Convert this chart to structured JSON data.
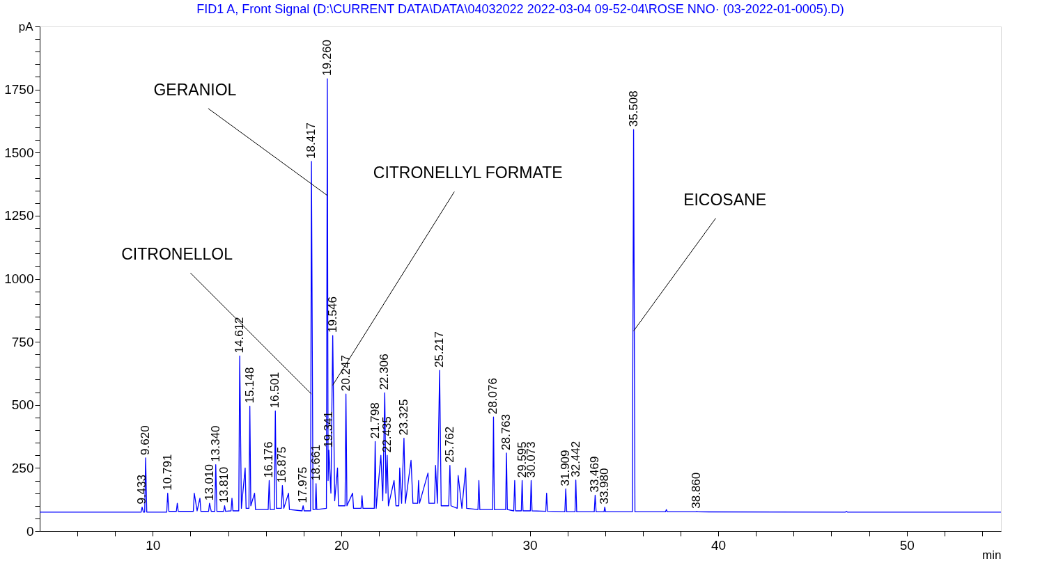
{
  "chart_data": {
    "type": "line",
    "title": "FID1 A, Front Signal (D:\\CURRENT DATA\\DATA\\04032022 2022-03-04 09-52-04\\ROSE NNO·   (03-2022-01-0005).D)",
    "xlabel": "min",
    "ylabel": "pA",
    "xlim": [
      4,
      55
    ],
    "ylim": [
      0,
      2000
    ],
    "xticks": [
      {
        "value": 6,
        "label": null
      },
      {
        "value": 8,
        "label": null
      },
      10,
      {
        "value": 12,
        "label": null
      },
      {
        "value": 14,
        "label": null
      },
      {
        "value": 16,
        "label": null
      },
      {
        "value": 18,
        "label": null
      },
      20,
      {
        "value": 22,
        "label": null
      },
      {
        "value": 24,
        "label": null
      },
      {
        "value": 26,
        "label": null
      },
      {
        "value": 28,
        "label": null
      },
      30,
      {
        "value": 32,
        "label": null
      },
      {
        "value": 34,
        "label": null
      },
      {
        "value": 36,
        "label": null
      },
      {
        "value": 38,
        "label": null
      },
      40,
      {
        "value": 42,
        "label": null
      },
      {
        "value": 44,
        "label": null
      },
      {
        "value": 46,
        "label": null
      },
      {
        "value": 48,
        "label": null
      },
      50,
      {
        "value": 52,
        "label": null
      },
      {
        "value": 54,
        "label": null
      }
    ],
    "yticks": [
      0,
      {
        "value": 50,
        "label": null
      },
      {
        "value": 100,
        "label": null
      },
      {
        "value": 150,
        "label": null
      },
      {
        "value": 200,
        "label": null
      },
      250,
      {
        "value": 300,
        "label": null
      },
      {
        "value": 350,
        "label": null
      },
      {
        "value": 400,
        "label": null
      },
      {
        "value": 450,
        "label": null
      },
      500,
      {
        "value": 550,
        "label": null
      },
      {
        "value": 600,
        "label": null
      },
      {
        "value": 650,
        "label": null
      },
      {
        "value": 700,
        "label": null
      },
      750,
      {
        "value": 800,
        "label": null
      },
      {
        "value": 850,
        "label": null
      },
      {
        "value": 900,
        "label": null
      },
      {
        "value": 950,
        "label": null
      },
      1000,
      {
        "value": 1050,
        "label": null
      },
      {
        "value": 1100,
        "label": null
      },
      {
        "value": 1150,
        "label": null
      },
      {
        "value": 1200,
        "label": null
      },
      1250,
      {
        "value": 1300,
        "label": null
      },
      {
        "value": 1350,
        "label": null
      },
      {
        "value": 1400,
        "label": null
      },
      {
        "value": 1450,
        "label": null
      },
      1500,
      {
        "value": 1550,
        "label": null
      },
      {
        "value": 1600,
        "label": null
      },
      {
        "value": 1650,
        "label": null
      },
      {
        "value": 1700,
        "label": null
      },
      1750,
      {
        "value": 1800,
        "label": null
      },
      {
        "value": 1850,
        "label": null
      },
      {
        "value": 1900,
        "label": null
      },
      {
        "value": 1950,
        "label": null
      },
      {
        "value": 2000,
        "label": null
      }
    ],
    "grid": false,
    "legend": false,
    "marker": "none",
    "line_style": "solid",
    "series": [
      {
        "color": "#0000ff",
        "x": [
          4,
          9.38,
          9.433,
          9.5,
          9.57,
          9.62,
          9.68,
          10.74,
          10.791,
          10.85,
          11.25,
          11.3,
          11.35,
          12.15,
          12.2,
          12.35,
          12.5,
          12.55,
          12.96,
          13.01,
          13.1,
          13.29,
          13.34,
          13.4,
          13.76,
          13.81,
          13.86,
          14.15,
          14.2,
          14.25,
          14.56,
          14.612,
          14.7,
          14.9,
          14.95,
          15.1,
          15.148,
          15.2,
          15.4,
          15.45,
          16.12,
          16.176,
          16.23,
          16.45,
          16.501,
          16.56,
          16.82,
          16.875,
          16.95,
          17.2,
          17.25,
          17.92,
          17.975,
          18.03,
          18.37,
          18.417,
          18.5,
          18.62,
          18.661,
          18.7,
          19.21,
          19.26,
          19.3,
          19.341,
          19.45,
          19.546,
          19.65,
          19.8,
          19.85,
          20.2,
          20.247,
          20.3,
          20.6,
          20.65,
          21.05,
          21.1,
          21.15,
          21.75,
          21.798,
          21.85,
          22.1,
          22.2,
          22.306,
          22.37,
          22.435,
          22.5,
          22.8,
          22.9,
          23.05,
          23.1,
          23.2,
          23.325,
          23.4,
          23.7,
          23.8,
          24.05,
          24.1,
          24.15,
          24.6,
          24.65,
          24.95,
          25.0,
          25.1,
          25.217,
          25.3,
          25.7,
          25.762,
          25.82,
          26.15,
          26.2,
          26.4,
          26.6,
          26.65,
          27.25,
          27.3,
          27.35,
          28.03,
          28.076,
          28.12,
          28.72,
          28.763,
          28.81,
          29.15,
          29.2,
          29.25,
          29.55,
          29.595,
          29.64,
          30.03,
          30.073,
          30.12,
          30.85,
          30.894,
          30.94,
          31.86,
          31.909,
          31.96,
          32.4,
          32.442,
          32.49,
          33.42,
          33.469,
          33.52,
          33.94,
          33.98,
          34.02,
          35.44,
          35.508,
          35.58,
          37.2,
          37.246,
          37.3,
          38.82,
          38.86,
          38.9,
          46.75,
          46.8,
          46.85,
          55
        ],
        "values": [
          75,
          75,
          95,
          75,
          75,
          290,
          75,
          75,
          150,
          78,
          78,
          110,
          78,
          78,
          150,
          80,
          130,
          78,
          78,
          110,
          78,
          78,
          263,
          78,
          78,
          100,
          78,
          80,
          130,
          80,
          80,
          694,
          90,
          250,
          90,
          90,
          495,
          100,
          150,
          85,
          85,
          200,
          85,
          85,
          476,
          90,
          90,
          180,
          90,
          150,
          85,
          80,
          100,
          80,
          80,
          1465,
          85,
          85,
          188,
          85,
          90,
          1793,
          200,
          320,
          150,
          775,
          120,
          250,
          100,
          100,
          543,
          100,
          150,
          90,
          90,
          140,
          90,
          90,
          355,
          90,
          300,
          120,
          548,
          150,
          300,
          100,
          200,
          100,
          100,
          250,
          110,
          368,
          110,
          280,
          110,
          110,
          200,
          110,
          230,
          110,
          110,
          260,
          110,
          637,
          100,
          100,
          260,
          100,
          90,
          220,
          90,
          250,
          90,
          85,
          200,
          85,
          85,
          452,
          85,
          85,
          309,
          85,
          80,
          200,
          80,
          80,
          200,
          80,
          80,
          200,
          80,
          78,
          150,
          78,
          76,
          167,
          76,
          76,
          202,
          76,
          76,
          142,
          76,
          76,
          95,
          76,
          76,
          1591,
          76,
          76,
          85,
          76,
          76,
          78,
          76,
          75,
          78,
          75,
          75
        ]
      }
    ],
    "annotations": [
      {
        "text": "GERANIOL",
        "x": 19.26,
        "y": 1330
      },
      {
        "text": "CITRONELLYL FORMATE",
        "x": 19.546,
        "y": 578
      },
      {
        "text": "CITRONELLOL",
        "x": 18.417,
        "y": 543
      },
      {
        "text": "EICOSANE",
        "x": 35.508,
        "y": 793
      },
      {
        "text": "9.433",
        "x": 9.433,
        "y": 95
      },
      {
        "text": "9.620",
        "x": 9.62,
        "y": 290
      },
      {
        "text": "10.791",
        "x": 10.791,
        "y": 150
      },
      {
        "text": "13.010",
        "x": 13.01,
        "y": 110
      },
      {
        "text": "13.340",
        "x": 13.34,
        "y": 263
      },
      {
        "text": "13.810",
        "x": 13.81,
        "y": 100
      },
      {
        "text": "14.612",
        "x": 14.612,
        "y": 694
      },
      {
        "text": "15.148",
        "x": 15.148,
        "y": 495
      },
      {
        "text": "16.176",
        "x": 16.176,
        "y": 200
      },
      {
        "text": "16.501",
        "x": 16.501,
        "y": 476
      },
      {
        "text": "16.875",
        "x": 16.875,
        "y": 180
      },
      {
        "text": "17.975",
        "x": 17.975,
        "y": 100
      },
      {
        "text": "18.417",
        "x": 18.417,
        "y": 1465
      },
      {
        "text": "18.661",
        "x": 18.661,
        "y": 188
      },
      {
        "text": "19.260",
        "x": 19.26,
        "y": 1793
      },
      {
        "text": "19.341",
        "x": 19.341,
        "y": 320
      },
      {
        "text": "19.546",
        "x": 19.546,
        "y": 775
      },
      {
        "text": "20.247",
        "x": 20.247,
        "y": 543
      },
      {
        "text": "21.798",
        "x": 21.798,
        "y": 355
      },
      {
        "text": "22.306",
        "x": 22.306,
        "y": 548
      },
      {
        "text": "22.435",
        "x": 22.435,
        "y": 300
      },
      {
        "text": "23.325",
        "x": 23.325,
        "y": 368
      },
      {
        "text": "25.217",
        "x": 25.217,
        "y": 637
      },
      {
        "text": "25.762",
        "x": 25.762,
        "y": 260
      },
      {
        "text": "28.076",
        "x": 28.076,
        "y": 452
      },
      {
        "text": "28.763",
        "x": 28.763,
        "y": 309
      },
      {
        "text": "29.595",
        "x": 29.595,
        "y": 200
      },
      {
        "text": "30.073",
        "x": 30.073,
        "y": 200
      },
      {
        "text": "31.909",
        "x": 31.909,
        "y": 167
      },
      {
        "text": "32.442",
        "x": 32.442,
        "y": 202
      },
      {
        "text": "33.469",
        "x": 33.469,
        "y": 142
      },
      {
        "text": "33.980",
        "x": 33.98,
        "y": 95
      },
      {
        "text": "35.508",
        "x": 35.508,
        "y": 1591
      },
      {
        "text": "38.860",
        "x": 38.86,
        "y": 78
      }
    ]
  }
}
